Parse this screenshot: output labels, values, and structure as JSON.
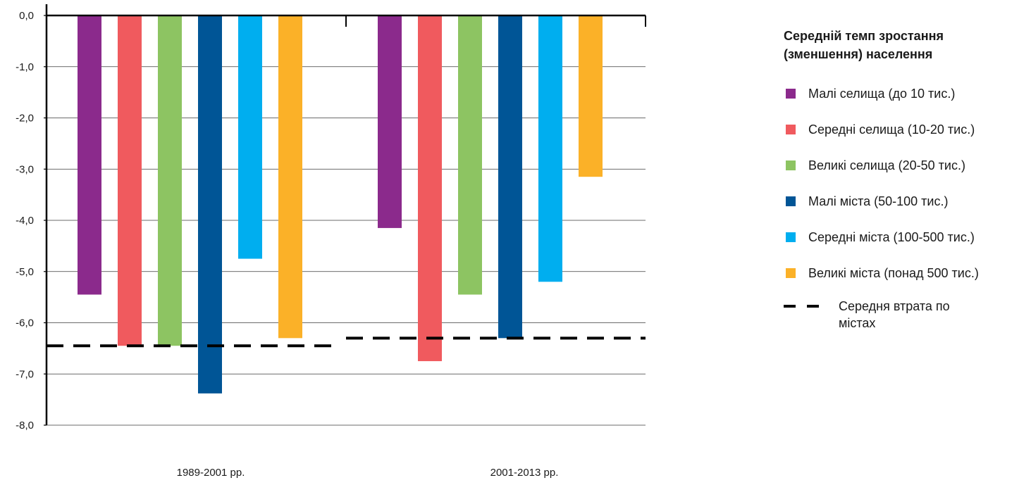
{
  "chart_data": {
    "type": "bar",
    "title": "Середній темп зростання (зменшення) населення",
    "categories": [
      "1989-2001 рр.",
      "2001-2013 рр."
    ],
    "series": [
      {
        "name": "Малі селища (до 10 тис.)",
        "color": "#8b2a8c",
        "values": [
          -5.45,
          -4.15
        ]
      },
      {
        "name": "Середні селища (10-20 тис.)",
        "color": "#f05a5e",
        "values": [
          -6.45,
          -6.75
        ]
      },
      {
        "name": "Великі селища (20-50 тис.)",
        "color": "#8dc462",
        "values": [
          -6.45,
          -5.45
        ]
      },
      {
        "name": "Малі міста (50-100 тис.)",
        "color": "#005596",
        "values": [
          -7.38,
          -6.3
        ]
      },
      {
        "name": "Середні міста (100-500 тис.)",
        "color": "#00aeef",
        "values": [
          -4.75,
          -5.2
        ]
      },
      {
        "name": "Великі міста (понад 500 тис.)",
        "color": "#fbb128",
        "values": [
          -6.3,
          -3.15
        ]
      }
    ],
    "average_line": {
      "name": "Середня втрата по містах",
      "color": "#000000",
      "values": [
        -6.45,
        -6.3
      ]
    },
    "yticks": [
      "0,0",
      "-1,0",
      "-2,0",
      "-3,0",
      "-4,0",
      "-5,0",
      "-6,0",
      "-7,0",
      "-8,0"
    ],
    "ylim": [
      -8,
      0
    ],
    "grid": true,
    "legend_position": "right"
  },
  "legend": {
    "title_line1": "Середній темп зростання",
    "title_line2": "(зменшення) населення",
    "items": [
      "Малі селища (до 10 тис.)",
      "Середні селища (10-20 тис.)",
      "Великі селища (20-50 тис.)",
      "Малі міста (50-100 тис.)",
      "Середні міста (100-500 тис.)",
      "Великі міста (понад 500 тис.)"
    ],
    "dash_label_line1": "Середня втрата по",
    "dash_label_line2": "містах"
  }
}
